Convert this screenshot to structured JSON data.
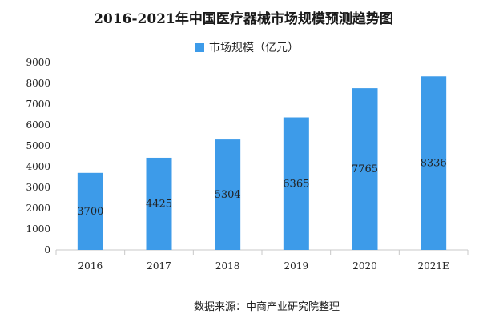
{
  "chart_data": {
    "type": "bar",
    "title": "2016-2021年中国医疗器械市场规模预测趋势图",
    "categories": [
      "2016",
      "2017",
      "2018",
      "2019",
      "2020",
      "2021E"
    ],
    "series": [
      {
        "name": "市场规模（亿元）",
        "values": [
          3700,
          4425,
          5304,
          6365,
          7765,
          8336
        ]
      }
    ],
    "ylim": [
      0,
      9000
    ],
    "yticks": [
      0,
      1000,
      2000,
      3000,
      4000,
      5000,
      6000,
      7000,
      8000,
      9000
    ],
    "grid": false,
    "legend_position": "top-center",
    "bar_color": "#3d9be9",
    "axis_color": "#c8c8c8"
  },
  "footer": {
    "source": "数据来源：中商产业研究院整理"
  }
}
